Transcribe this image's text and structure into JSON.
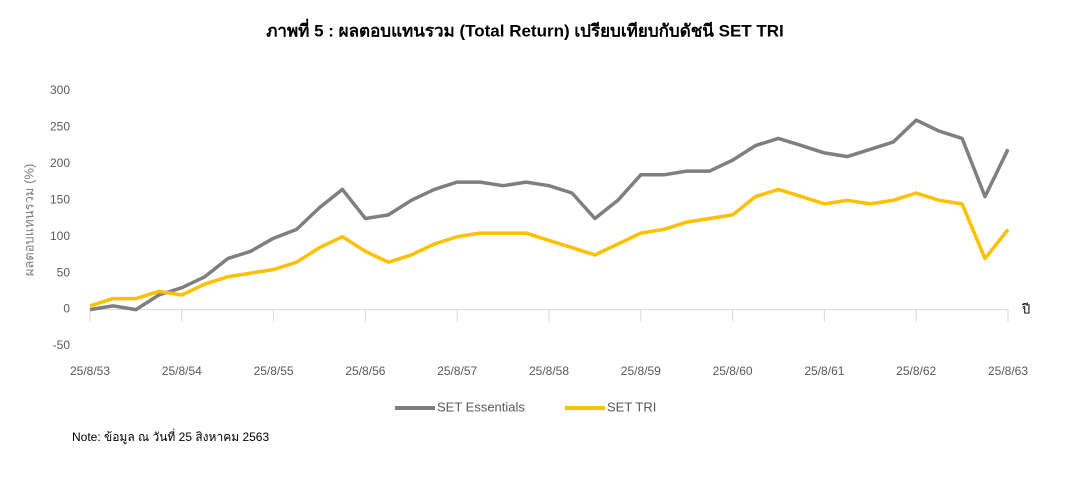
{
  "chart_data": {
    "type": "line",
    "title": "ภาพที่ 5 : ผลตอบแทนรวม (Total Return) เปรียบเทียบกับดัชนี SET TRI",
    "ylabel": "ผลตอบแทนรวม (%)",
    "xlabel": "ปี",
    "note": "Note: ข้อมูล ณ วันที่ 25 สิงหาคม 2563",
    "categories": [
      "25/8/53",
      null,
      null,
      null,
      "25/8/54",
      null,
      null,
      null,
      "25/8/55",
      null,
      null,
      null,
      "25/8/56",
      null,
      null,
      null,
      "25/8/57",
      null,
      null,
      null,
      "25/8/58",
      null,
      null,
      null,
      "25/8/59",
      null,
      null,
      null,
      "25/8/60",
      null,
      null,
      null,
      "25/8/61",
      null,
      null,
      null,
      "25/8/62",
      null,
      null,
      null,
      "25/8/63"
    ],
    "series": [
      {
        "name": "SET Essentials",
        "color": "#7f7f7f",
        "values": [
          0,
          5,
          0,
          20,
          30,
          45,
          70,
          80,
          98,
          110,
          140,
          165,
          125,
          130,
          150,
          165,
          175,
          175,
          170,
          175,
          170,
          160,
          125,
          150,
          185,
          185,
          190,
          190,
          205,
          225,
          235,
          225,
          215,
          210,
          220,
          230,
          260,
          245,
          235,
          155,
          220
        ]
      },
      {
        "name": "SET TRI",
        "color": "#ffc000",
        "values": [
          5,
          15,
          15,
          25,
          20,
          35,
          45,
          50,
          55,
          65,
          85,
          100,
          80,
          65,
          75,
          90,
          100,
          105,
          105,
          105,
          95,
          85,
          75,
          90,
          105,
          110,
          120,
          125,
          130,
          155,
          165,
          155,
          145,
          150,
          145,
          150,
          160,
          150,
          145,
          70,
          110
        ]
      }
    ],
    "ylim": [
      -50,
      300
    ],
    "yticks": [
      -50,
      0,
      50,
      100,
      150,
      200,
      250,
      300
    ]
  }
}
